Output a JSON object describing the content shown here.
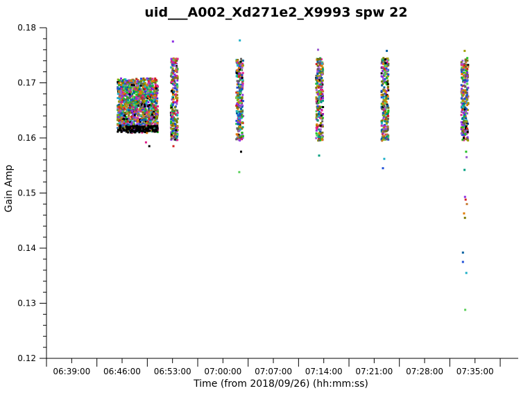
{
  "chart_data": {
    "type": "scatter",
    "title": "uid___A002_Xd271e2_X9993 spw 22",
    "xlabel": "Time (from 2018/09/26) (hh:mm:ss)",
    "ylabel": "Gain Amp",
    "xlim": [
      "06:35:30",
      "07:41:00"
    ],
    "ylim": [
      0.12,
      0.18
    ],
    "x_ticks": [
      "06:39:00",
      "06:46:00",
      "06:53:00",
      "07:00:00",
      "07:07:00",
      "07:14:00",
      "07:21:00",
      "07:28:00",
      "07:35:00"
    ],
    "y_ticks": [
      "0.12",
      "0.13",
      "0.14",
      "0.15",
      "0.16",
      "0.17",
      "0.18"
    ],
    "grid": false,
    "series_colors": [
      "#000000",
      "#1f4fd8",
      "#e07b00",
      "#8a2be2",
      "#22c022",
      "#e0208c",
      "#1fb0c8",
      "#7a7a00",
      "#d42020",
      "#9b59d0",
      "#606060",
      "#5ad05a",
      "#0060a0",
      "#c87a30",
      "#00a080",
      "#a0a000"
    ],
    "clusters": [
      {
        "time": "06:48:10",
        "y_min": 0.1585,
        "y_max": 0.171,
        "outliers": [
          0.1585,
          0.1592
        ]
      },
      {
        "time": "06:53:15",
        "y_min": 0.1585,
        "y_max": 0.1775,
        "outliers": [
          0.1775,
          0.1585
        ]
      },
      {
        "time": "07:02:20",
        "y_min": 0.1538,
        "y_max": 0.1777,
        "outliers": [
          0.1777,
          0.1538,
          0.1575
        ]
      },
      {
        "time": "07:13:25",
        "y_min": 0.1568,
        "y_max": 0.176,
        "outliers": [
          0.176,
          0.1568
        ]
      },
      {
        "time": "07:22:30",
        "y_min": 0.1545,
        "y_max": 0.1758,
        "outliers": [
          0.1758,
          0.1545,
          0.1562
        ]
      },
      {
        "time": "07:33:35",
        "y_min": 0.1288,
        "y_max": 0.1758,
        "outliers": [
          0.1758,
          0.1575,
          0.1565,
          0.1542,
          0.1493,
          0.1488,
          0.148,
          0.1463,
          0.1455,
          0.1392,
          0.1375,
          0.1355,
          0.1288
        ]
      }
    ]
  }
}
